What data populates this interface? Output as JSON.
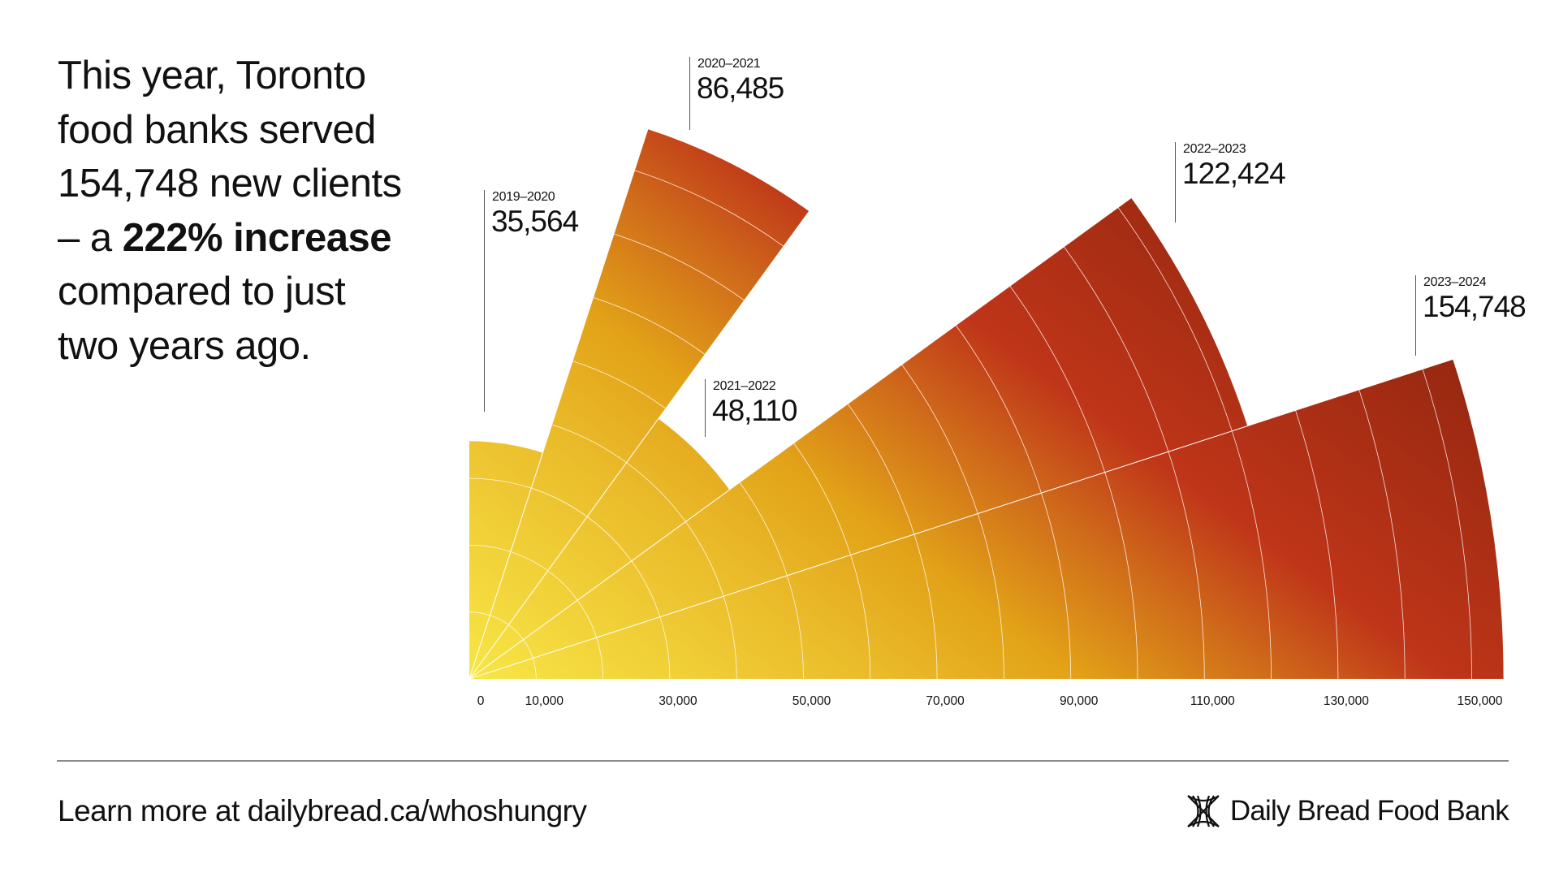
{
  "headline": {
    "line1": "This year, Toronto",
    "line2": "food banks served",
    "line3": "154,748 new clients",
    "line4_prefix": "– a ",
    "line4_bold": "222% increase",
    "line5": "compared to just",
    "line6": "two years ago."
  },
  "chart_data": {
    "type": "polar-area",
    "title": "",
    "categories": [
      "2019–2020",
      "2020–2021",
      "2021–2022",
      "2022–2023",
      "2023–2024"
    ],
    "values": [
      35564,
      86485,
      48110,
      122424,
      154748
    ],
    "value_labels": [
      "35,564",
      "86,485",
      "48,110",
      "122,424",
      "154,748"
    ],
    "radial_ticks": [
      0,
      10000,
      30000,
      50000,
      70000,
      90000,
      110000,
      130000,
      150000
    ],
    "radial_tick_labels": [
      "0",
      "10,000",
      "30,000",
      "50,000",
      "70,000",
      "90,000",
      "110,000",
      "130,000",
      "150,000"
    ],
    "grid_step": 10000,
    "rmax": 160000,
    "grid": true,
    "colors": {
      "low": "#f8e646",
      "mid": "#e2a218",
      "high": "#bf3519",
      "max": "#962810"
    }
  },
  "footer": {
    "link_text": "Learn more at dailybread.ca/whoshungry",
    "logo_text": "Daily Bread Food Bank"
  }
}
